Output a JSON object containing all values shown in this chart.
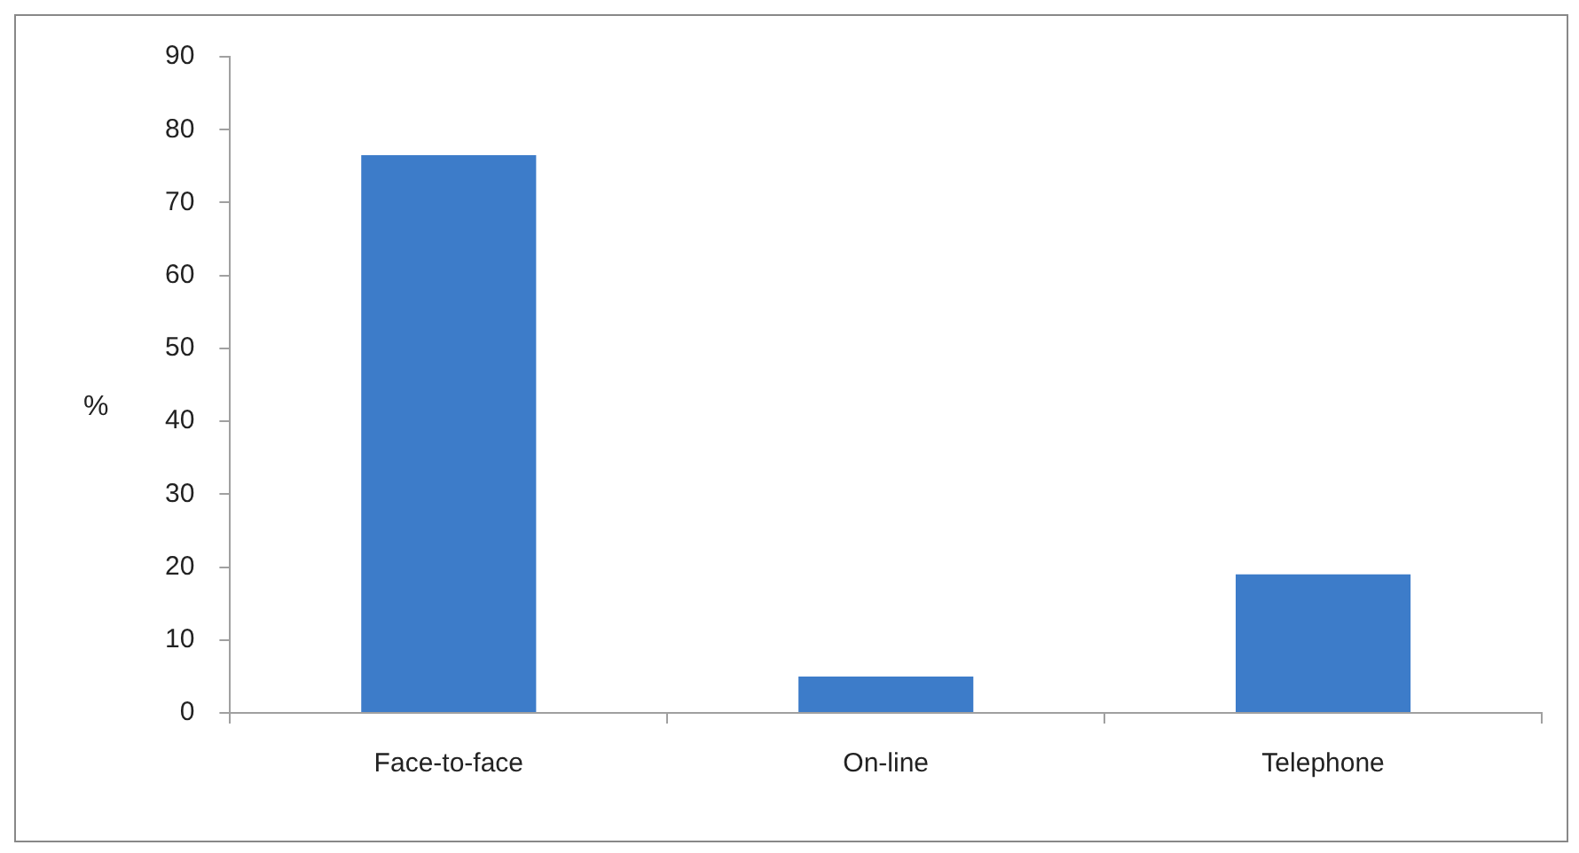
{
  "chart_data": {
    "type": "bar",
    "ylabel": "%",
    "categories": [
      "Face-to-face",
      "On-line",
      "Telephone"
    ],
    "series": [
      {
        "color": "#3d7cc9",
        "values": [
          76.5,
          5,
          19
        ]
      }
    ],
    "ylim": [
      0,
      90
    ],
    "yticks": [
      0,
      10,
      20,
      30,
      40,
      50,
      60,
      70,
      80,
      90
    ],
    "grid": false,
    "legend": false
  }
}
